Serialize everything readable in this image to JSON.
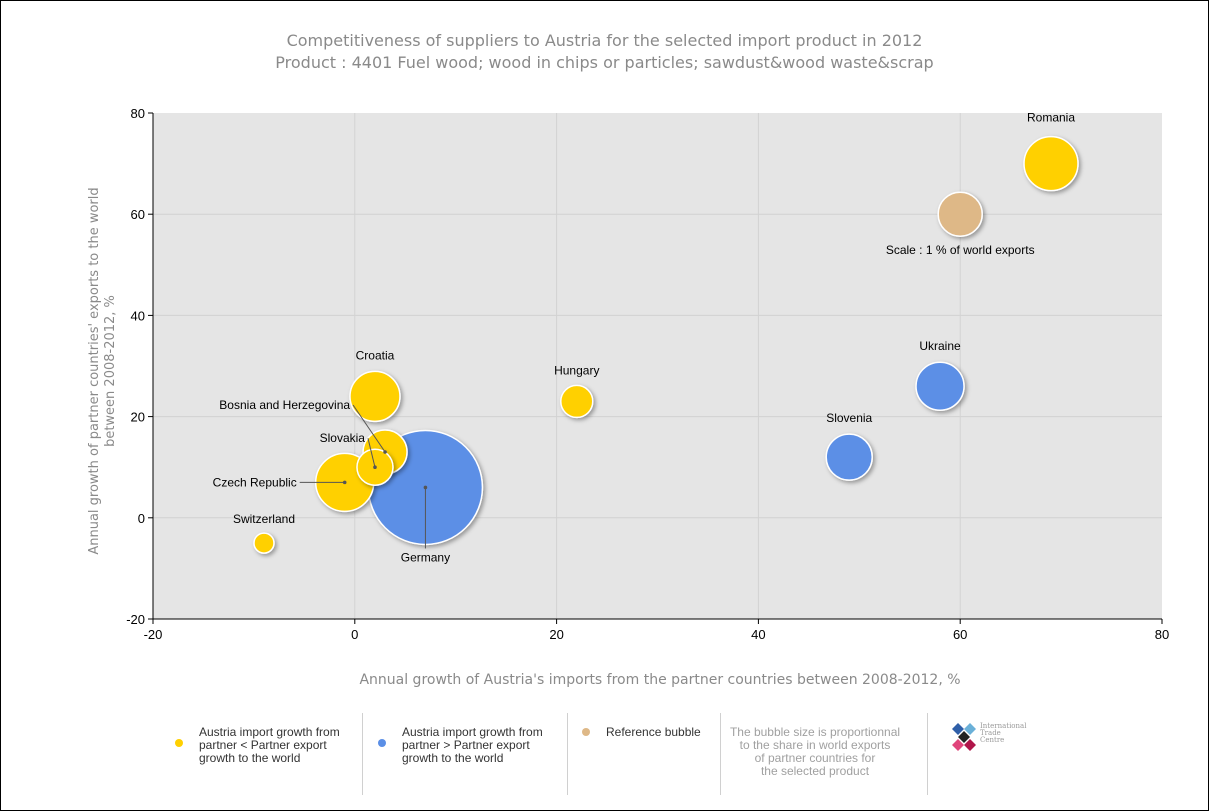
{
  "chart_data": {
    "type": "scatter",
    "title": "Competitiveness of suppliers to Austria for the selected import product in 2012",
    "subtitle": "Product : 4401 Fuel wood; wood in chips or particles; sawdust&wood waste&scrap",
    "xlabel": "Annual growth of Austria's imports from the partner countries between 2008-2012, %",
    "ylabel_line1": "Annual growth of partner countries' exports to the world",
    "ylabel_line2": "between 2008-2012, %",
    "xlim": [
      -20,
      80
    ],
    "ylim": [
      -20,
      80
    ],
    "x_ticks": [
      "-20",
      "0",
      "20",
      "40",
      "60",
      "80"
    ],
    "y_ticks": [
      "80",
      "60",
      "40",
      "20",
      "0",
      "-20"
    ],
    "grid": true,
    "colors": {
      "below": "#ffd000",
      "above": "#5b8fe6",
      "reference": "#deb887"
    },
    "points": [
      {
        "label": "Romania",
        "x": 69,
        "y": 70,
        "r": 27,
        "group": "below"
      },
      {
        "label": "Ukraine",
        "x": 58,
        "y": 26,
        "r": 24,
        "group": "above"
      },
      {
        "label": "Slovenia",
        "x": 49,
        "y": 12,
        "r": 23,
        "group": "above"
      },
      {
        "label": "Hungary",
        "x": 22,
        "y": 23,
        "r": 16,
        "group": "below"
      },
      {
        "label": "Croatia",
        "x": 2,
        "y": 24,
        "r": 25,
        "group": "below"
      },
      {
        "label": "Bosnia and Herzegovina",
        "x": 3,
        "y": 13,
        "r": 22,
        "group": "below"
      },
      {
        "label": "Slovakia",
        "x": 2,
        "y": 10,
        "r": 18,
        "group": "below"
      },
      {
        "label": "Czech Republic",
        "x": -1,
        "y": 7,
        "r": 29,
        "group": "below"
      },
      {
        "label": "Germany",
        "x": 7,
        "y": 6,
        "r": 57,
        "group": "above"
      },
      {
        "label": "Switzerland",
        "x": -9,
        "y": -5,
        "r": 10,
        "group": "below"
      },
      {
        "label": "Scale : 1 % of world exports",
        "x": 60,
        "y": 60,
        "r": 22,
        "group": "reference"
      }
    ]
  },
  "legend": {
    "items": [
      {
        "text": "Austria import growth from\npartner < Partner export\ngrowth to the world",
        "color": "#ffd000"
      },
      {
        "text": "Austria import growth from\npartner > Partner export\ngrowth to the world",
        "color": "#5b8fe6"
      },
      {
        "text": "Reference bubble",
        "color": "#deb887"
      }
    ],
    "note": "The bubble size is proportionnal\nto the share in world exports\nof partner countries for\nthe selected product",
    "logo_text": "International\nTrade\nCentre"
  }
}
